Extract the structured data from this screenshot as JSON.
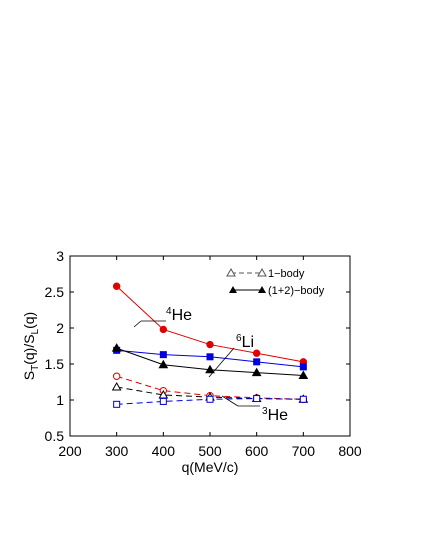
{
  "chart_data": {
    "type": "line",
    "title": "",
    "xlabel": "q(MeV/c)",
    "ylabel": {
      "main": "S",
      "sub_t": "T",
      "mid": "(q)/S",
      "sub_l": "L",
      "end": "(q)"
    },
    "xlim": [
      200,
      800
    ],
    "ylim": [
      0.5,
      3
    ],
    "xticks": [
      200,
      300,
      400,
      500,
      600,
      700,
      800
    ],
    "yticks": [
      0.5,
      1,
      1.5,
      2,
      2.5,
      3
    ],
    "xtick_labels": [
      "200",
      "300",
      "400",
      "500",
      "600",
      "700",
      "800"
    ],
    "ytick_labels": [
      "0.5",
      "1",
      "1.5",
      "2",
      "2.5",
      "3"
    ],
    "grid": false,
    "legend": {
      "placement": "top-right",
      "entries": [
        {
          "label": "1−body",
          "style": "dashed",
          "marker": "triangle-open",
          "color": "#555555"
        },
        {
          "label": "(1+2)−body",
          "style": "solid",
          "marker": "triangle-filled",
          "color": "#000000"
        }
      ]
    },
    "annotations": [
      {
        "sup": "4",
        "text": "He",
        "series": "He4 (1+2)-body"
      },
      {
        "sup": "6",
        "text": "Li",
        "series": "Li6 (1+2)-body"
      },
      {
        "sup": "3",
        "text": "He",
        "series": "He3 (1+2)-body"
      }
    ],
    "series": [
      {
        "id": "he4_full",
        "x": [
          300,
          400,
          500,
          600,
          700
        ],
        "values": [
          2.58,
          1.98,
          1.77,
          1.65,
          1.53
        ],
        "color": "#e00000",
        "style": "solid",
        "marker": "circle-filled"
      },
      {
        "id": "li6_full",
        "x": [
          300,
          400,
          500,
          600,
          700
        ],
        "values": [
          1.69,
          1.63,
          1.6,
          1.53,
          1.46
        ],
        "color": "#0000e0",
        "style": "solid",
        "marker": "square-filled"
      },
      {
        "id": "he3_full",
        "x": [
          300,
          400,
          500,
          600,
          700
        ],
        "values": [
          1.72,
          1.49,
          1.42,
          1.38,
          1.34
        ],
        "color": "#000000",
        "style": "solid",
        "marker": "triangle-filled"
      },
      {
        "id": "he4_one",
        "x": [
          300,
          400,
          500,
          600,
          700
        ],
        "values": [
          1.33,
          1.13,
          1.06,
          1.03,
          1.01
        ],
        "color": "#e00000",
        "style": "dashed",
        "marker": "circle-open"
      },
      {
        "id": "he3_one",
        "x": [
          300,
          400,
          500,
          600,
          700
        ],
        "values": [
          1.18,
          1.07,
          1.04,
          1.02,
          1.01
        ],
        "color": "#000000",
        "style": "dashed",
        "marker": "triangle-open"
      },
      {
        "id": "li6_one",
        "x": [
          300,
          400,
          500,
          600,
          700
        ],
        "values": [
          0.94,
          0.98,
          1.01,
          1.02,
          1.01
        ],
        "color": "#0000e0",
        "style": "dashed",
        "marker": "square-open"
      }
    ]
  }
}
